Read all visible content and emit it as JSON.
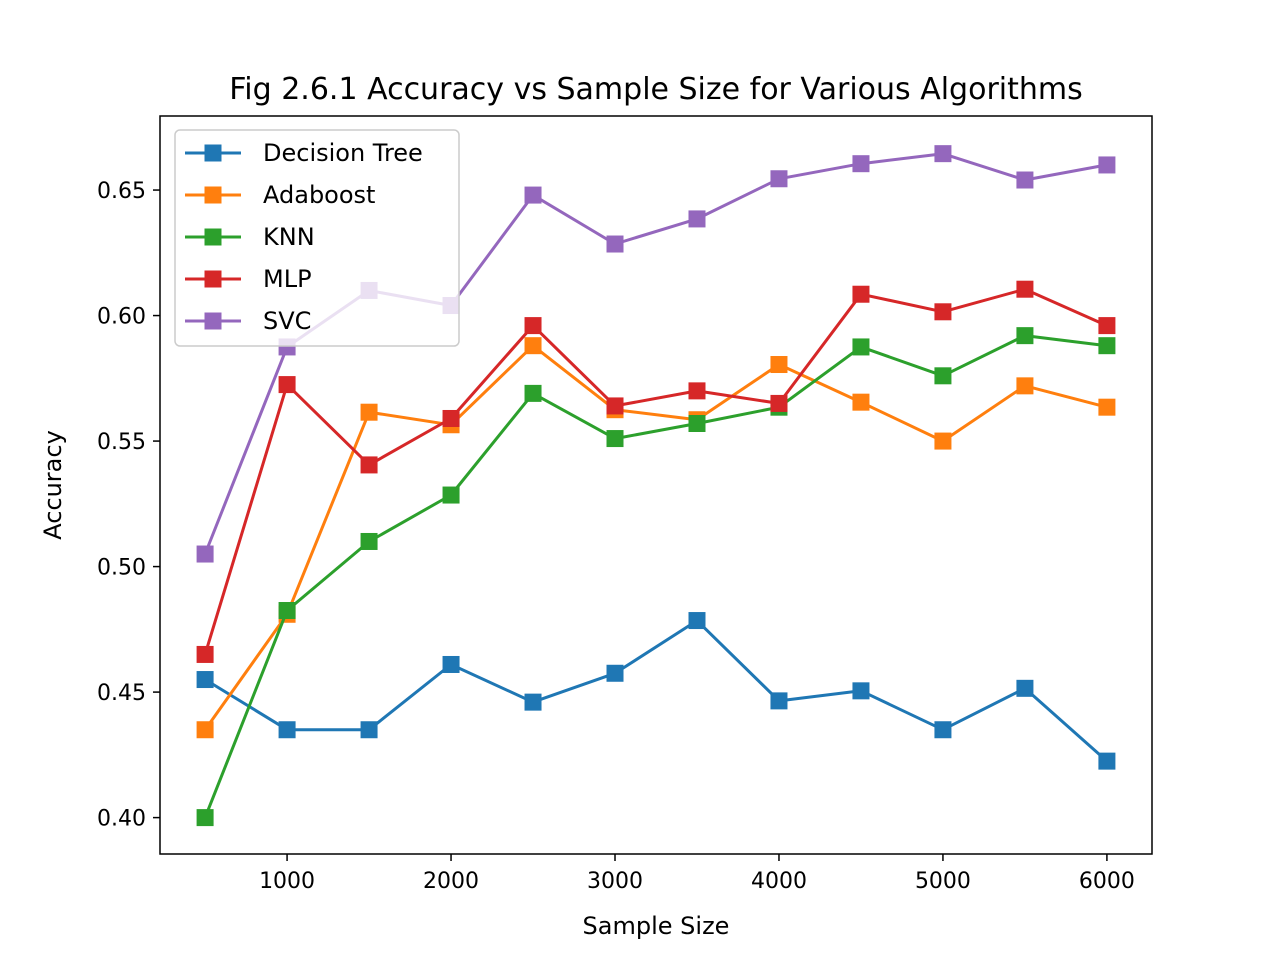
{
  "chart_data": {
    "type": "line",
    "title": "Fig 2.6.1 Accuracy vs Sample Size for Various Algorithms",
    "xlabel": "Sample Size",
    "ylabel": "Accuracy",
    "x": [
      500,
      1000,
      1500,
      2000,
      2500,
      3000,
      3500,
      4000,
      4500,
      5000,
      5500,
      6000
    ],
    "xlim": [
      225,
      6275
    ],
    "ylim": [
      0.3855,
      0.6795
    ],
    "xticks": [
      1000,
      2000,
      3000,
      4000,
      5000,
      6000
    ],
    "xtick_labels": [
      "1000",
      "2000",
      "3000",
      "4000",
      "5000",
      "6000"
    ],
    "yticks": [
      0.4,
      0.45,
      0.5,
      0.55,
      0.6,
      0.65
    ],
    "ytick_labels": [
      "0.40",
      "0.45",
      "0.50",
      "0.55",
      "0.60",
      "0.65"
    ],
    "grid": false,
    "legend_position": "top-left",
    "marker": "square",
    "series": [
      {
        "name": "Decision Tree",
        "color": "#1f77b4",
        "values": [
          0.455,
          0.435,
          0.435,
          0.461,
          0.446,
          0.4575,
          0.4785,
          0.4465,
          0.4505,
          0.435,
          0.4515,
          0.4225
        ]
      },
      {
        "name": "Adaboost",
        "color": "#ff7f0e",
        "values": [
          0.435,
          0.481,
          0.5615,
          0.5565,
          0.588,
          0.5625,
          0.5585,
          0.5805,
          0.5655,
          0.55,
          0.572,
          0.5635
        ]
      },
      {
        "name": "KNN",
        "color": "#2ca02c",
        "values": [
          0.4,
          0.4825,
          0.51,
          0.5285,
          0.569,
          0.551,
          0.557,
          0.5635,
          0.5875,
          0.576,
          0.592,
          0.588
        ]
      },
      {
        "name": "MLP",
        "color": "#d62728",
        "values": [
          0.465,
          0.5725,
          0.5405,
          0.559,
          0.596,
          0.564,
          0.57,
          0.565,
          0.6085,
          0.6015,
          0.6105,
          0.596
        ]
      },
      {
        "name": "SVC",
        "color": "#9467bd",
        "values": [
          0.505,
          0.5875,
          0.61,
          0.604,
          0.648,
          0.6285,
          0.6385,
          0.6545,
          0.6605,
          0.6645,
          0.654,
          0.66
        ]
      }
    ]
  }
}
